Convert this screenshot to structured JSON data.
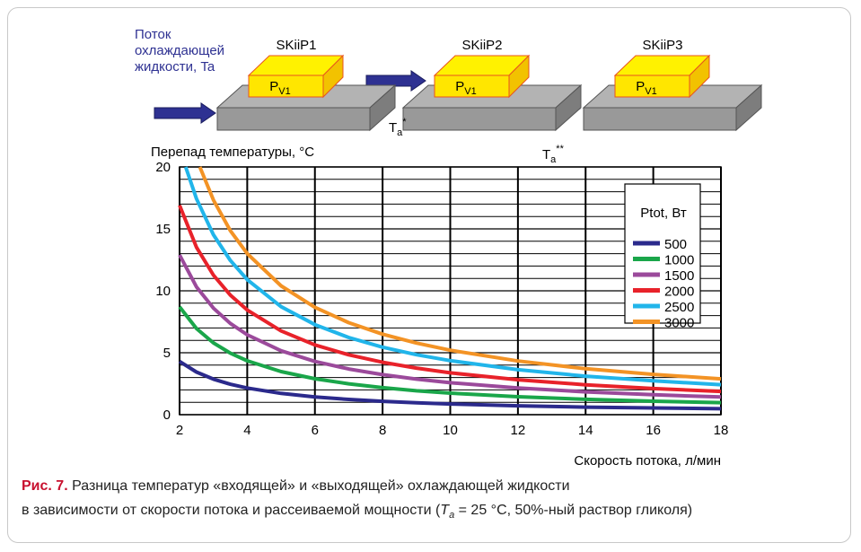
{
  "diagram": {
    "flow_label": [
      "Поток",
      "охлаждающей",
      "жидкости, Ta"
    ],
    "modules": [
      {
        "label": "SKiiP1",
        "power": "P",
        "power_sub": "V1"
      },
      {
        "label": "SKiiP2",
        "power": "P",
        "power_sub": "V1"
      },
      {
        "label": "SKiiP3",
        "power": "P",
        "power_sub": "V1"
      }
    ],
    "temps": [
      {
        "text": "T",
        "sub": "a",
        "sup": "*"
      },
      {
        "text": "T",
        "sub": "a",
        "sup": "**"
      }
    ]
  },
  "chart_data": {
    "type": "line",
    "y_label": "Перепад температуры, °C",
    "x_label": "Скорость потока, л/мин",
    "legend_title": "Ptot, Вт",
    "xlim": [
      2,
      18
    ],
    "xticks": [
      2,
      4,
      6,
      8,
      10,
      12,
      14,
      16,
      18
    ],
    "ylim": [
      0,
      20
    ],
    "yticks": [
      0,
      5,
      10,
      15,
      20
    ],
    "grid": true,
    "series": [
      {
        "name": "500",
        "color": "#2b2a8c",
        "x": [
          2,
          2.5,
          3,
          3.5,
          4,
          5,
          6,
          7,
          8,
          9,
          10,
          12,
          14,
          16,
          18
        ],
        "values": [
          4.3,
          3.44,
          2.87,
          2.46,
          2.15,
          1.72,
          1.43,
          1.23,
          1.08,
          0.96,
          0.86,
          0.72,
          0.61,
          0.54,
          0.48
        ]
      },
      {
        "name": "1000",
        "color": "#1aa64a",
        "x": [
          2,
          2.5,
          3,
          3.5,
          4,
          5,
          6,
          7,
          8,
          9,
          10,
          12,
          14,
          16,
          18
        ],
        "values": [
          8.7,
          6.96,
          5.8,
          4.97,
          4.35,
          3.48,
          2.9,
          2.49,
          2.18,
          1.93,
          1.74,
          1.45,
          1.24,
          1.09,
          0.97
        ]
      },
      {
        "name": "1500",
        "color": "#9b4a9b",
        "x": [
          2,
          2.5,
          3,
          3.5,
          4,
          5,
          6,
          7,
          8,
          9,
          10,
          12,
          14,
          16,
          18
        ],
        "values": [
          12.9,
          10.32,
          8.6,
          7.37,
          6.45,
          5.16,
          4.3,
          3.69,
          3.23,
          2.87,
          2.58,
          2.15,
          1.84,
          1.61,
          1.43
        ]
      },
      {
        "name": "2000",
        "color": "#e8222a",
        "x": [
          2,
          2.5,
          3,
          3.5,
          4,
          5,
          6,
          7,
          8,
          9,
          10,
          12,
          14,
          16,
          18
        ],
        "values": [
          16.9,
          13.52,
          11.27,
          9.66,
          8.45,
          6.76,
          5.63,
          4.83,
          4.23,
          3.76,
          3.38,
          2.82,
          2.41,
          2.11,
          1.88
        ]
      },
      {
        "name": "2500",
        "color": "#21b5ea",
        "x": [
          2.18,
          2.5,
          3,
          3.5,
          4,
          5,
          6,
          7,
          8,
          9,
          10,
          12,
          14,
          16,
          18
        ],
        "values": [
          20,
          17.44,
          14.53,
          12.46,
          10.9,
          8.72,
          7.27,
          6.23,
          5.45,
          4.84,
          4.36,
          3.63,
          3.11,
          2.73,
          2.42
        ]
      },
      {
        "name": "3000",
        "color": "#f39325",
        "x": [
          2.6,
          3,
          3.5,
          4,
          5,
          6,
          7,
          8,
          9,
          10,
          12,
          14,
          16,
          18
        ],
        "values": [
          20,
          17.33,
          14.86,
          13,
          10.4,
          8.67,
          7.43,
          6.5,
          5.78,
          5.2,
          4.33,
          3.71,
          3.25,
          2.89
        ]
      }
    ]
  },
  "caption": {
    "prefix": "Рис. 7.",
    "line1": " Разница температур «входящей» и «выходящей» охлаждающей жидкости",
    "line2_start": "в зависимости от скорости потока и рассеиваемой мощности (",
    "symbol": "T",
    "symbol_sub": "a",
    "line2_end": " = 25 °C, 50%-ный раствор гликоля)"
  }
}
